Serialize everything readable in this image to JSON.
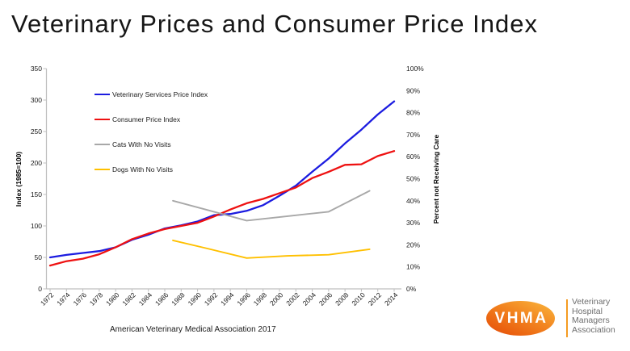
{
  "page": {
    "title": "Veterinary Prices and Consumer Price Index",
    "source_note": "American Veterinary Medical Association 2017"
  },
  "logo": {
    "acronym": "VHMA",
    "org_lines": [
      "Veterinary",
      "Hospital",
      "Managers",
      "Association"
    ],
    "orange": "#ef7414"
  },
  "chart_data": {
    "type": "line",
    "grid": "off",
    "legend_position": "inside-top-left",
    "x_axis": {
      "ticks": [
        1972,
        1974,
        1976,
        1978,
        1980,
        1982,
        1984,
        1986,
        1988,
        1990,
        1992,
        1994,
        1996,
        1998,
        2000,
        2002,
        2004,
        2006,
        2008,
        2010,
        2012,
        2014
      ],
      "label_rotation_deg": 45
    },
    "left_axis": {
      "label": "Index (1985=100)",
      "min": 0,
      "max": 350,
      "step": 50,
      "ticks": [
        0,
        50,
        100,
        150,
        200,
        250,
        300,
        350
      ]
    },
    "right_axis": {
      "label": "Percent not Receiving Care",
      "min": 0,
      "max": 100,
      "step": 10,
      "unit": "%",
      "ticks": [
        0,
        10,
        20,
        30,
        40,
        50,
        60,
        70,
        80,
        90,
        100
      ]
    },
    "series": [
      {
        "name": "Veterinary Services Price Index",
        "color": "#1c1ce0",
        "axis": "left",
        "x": [
          1972,
          1974,
          1976,
          1978,
          1980,
          1982,
          1984,
          1986,
          1988,
          1990,
          1992,
          1994,
          1996,
          1998,
          2000,
          2002,
          2004,
          2006,
          2008,
          2010,
          2012,
          2014
        ],
        "values": [
          50,
          54,
          57,
          60,
          66,
          78,
          86,
          96,
          101,
          107,
          117,
          119,
          124,
          133,
          148,
          164,
          186,
          207,
          231,
          253,
          277,
          298
        ]
      },
      {
        "name": "Consumer Price Index",
        "color": "#ee1111",
        "axis": "left",
        "x": [
          1972,
          1974,
          1976,
          1978,
          1980,
          1982,
          1984,
          1986,
          1988,
          1990,
          1992,
          1994,
          1996,
          1998,
          2000,
          2002,
          2004,
          2006,
          2008,
          2010,
          2012,
          2014
        ],
        "values": [
          37,
          44,
          48,
          55,
          66,
          79,
          88,
          95,
          100,
          105,
          115,
          126,
          136,
          143,
          152,
          161,
          176,
          186,
          197,
          198,
          211,
          219
        ]
      },
      {
        "name": "Cats With No Visits",
        "color": "#a8a8a8",
        "axis": "right",
        "x": [
          1987,
          1991,
          1996,
          2001,
          2006,
          2011
        ],
        "values": [
          40,
          36,
          31,
          33,
          35,
          44.5
        ]
      },
      {
        "name": "Dogs With No Visits",
        "color": "#ffc000",
        "axis": "right",
        "x": [
          1987,
          1991,
          1996,
          2001,
          2006,
          2011
        ],
        "values": [
          22,
          18.5,
          14,
          15,
          15.5,
          18
        ]
      }
    ]
  }
}
